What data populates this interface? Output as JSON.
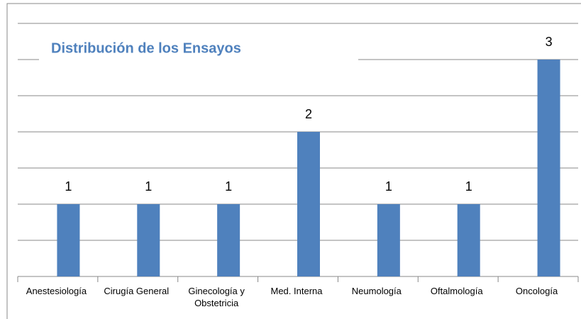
{
  "chart_data": {
    "type": "bar",
    "title": "Distribución de los Ensayos",
    "categories": [
      "Anestesiología",
      "Cirugía General",
      "Ginecología y Obstetricia",
      "Med. Interna",
      "Neumología",
      "Oftalmología",
      "Oncología"
    ],
    "values": [
      1,
      1,
      1,
      2,
      1,
      1,
      3
    ],
    "color": "#4f81bd",
    "ylim": [
      0,
      3.5
    ],
    "yticks": [
      0,
      0.5,
      1,
      1.5,
      2,
      2.5,
      3,
      3.5
    ],
    "grid": true
  }
}
